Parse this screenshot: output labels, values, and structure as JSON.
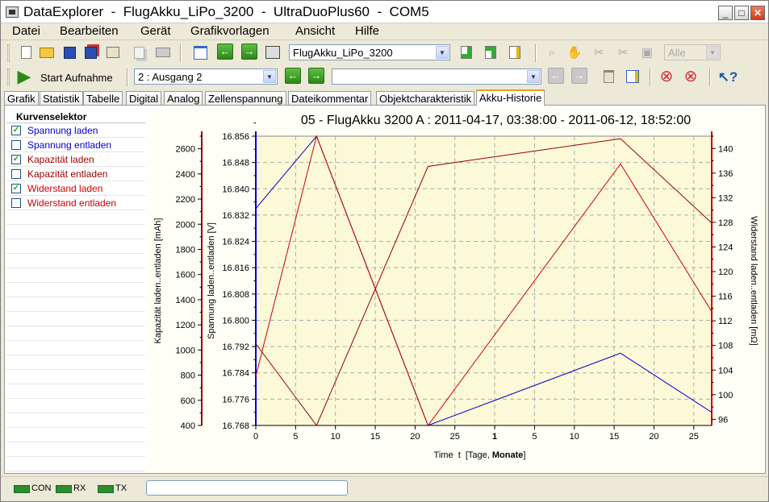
{
  "window": {
    "title": "DataExplorer  -  FlugAkku_LiPo_3200  -  UltraDuoPlus60  -  COM5",
    "minimize": "_",
    "maximize": "□",
    "close": "✕"
  },
  "menu": [
    "Datei",
    "Bearbeiten",
    "Gerät",
    "Grafikvorlagen",
    "Ansicht",
    "Hilfe"
  ],
  "toolbar": {
    "file_combo": "FlugAkku_LiPo_3200",
    "filter_combo": "Alle",
    "start_label": "Start Aufnahme",
    "channel_combo": "2 : Ausgang 2",
    "record_combo": "",
    "icons": {
      "new": "new-file-icon",
      "open": "open-folder-icon",
      "save": "save-icon",
      "save_as": "save-as-icon",
      "properties": "properties-icon",
      "copy": "copy-icon",
      "print": "print-icon"
    }
  },
  "tabs": [
    "Grafik",
    "Statistik",
    "Tabelle",
    "Digital",
    "Analog",
    "Zellenspannung",
    "Dateikommentar",
    "Objektcharakteristik",
    "Akku-Historie"
  ],
  "selected_tab": "Akku-Historie",
  "selector": {
    "header": "Kurvenselektor",
    "items": [
      {
        "label": "Spannung laden",
        "checked": true,
        "color": "#0000cc"
      },
      {
        "label": "Spannung entladen",
        "checked": false,
        "color": "#0000cc"
      },
      {
        "label": "Kapazität laden",
        "checked": true,
        "color": "#990000"
      },
      {
        "label": "Kapazität entladen",
        "checked": false,
        "color": "#990000"
      },
      {
        "label": "Widerstand laden",
        "checked": true,
        "color": "#cc0000"
      },
      {
        "label": "Widerstand entladen",
        "checked": false,
        "color": "#cc0000"
      }
    ]
  },
  "chart_data": {
    "type": "line",
    "title": "05 - FlugAkku 3200 A : 2011-04-17, 03:38:00 - 2011-06-12, 18:52:00",
    "xlabel_prefix": "Time  t  [Tage, ",
    "xlabel_bold": "Monate",
    "xlabel_suffix": "]",
    "x_ticks": [
      "0",
      "5",
      "10",
      "15",
      "20",
      "25",
      "1",
      "5",
      "10",
      "15",
      "20",
      "25"
    ],
    "x_tick_bold_index": 6,
    "axes": {
      "capacity": {
        "label": "Kapazität laden..entladen  [mAh]",
        "range": [
          400,
          2700
        ],
        "ticks": [
          "400",
          "600",
          "800",
          "1000",
          "1200",
          "1400",
          "1600",
          "1800",
          "2000",
          "2200",
          "2400",
          "2600"
        ],
        "color": "#990000"
      },
      "voltage": {
        "label": "Spannung laden..entladen  [V]",
        "range": [
          16.768,
          16.856
        ],
        "ticks": [
          "16.768",
          "16.776",
          "16.784",
          "16.792",
          "16.800",
          "16.808",
          "16.816",
          "16.824",
          "16.832",
          "16.840",
          "16.848",
          "16.856"
        ],
        "color": "#0000cc"
      },
      "resistance": {
        "label": "Widerstand laden..entladen  [mΩ]",
        "range": [
          95,
          142
        ],
        "ticks": [
          "96",
          "100",
          "104",
          "108",
          "112",
          "116",
          "120",
          "124",
          "128",
          "132",
          "136",
          "140"
        ],
        "color": "#cc0000"
      }
    },
    "series": [
      {
        "name": "Spannung laden",
        "axis": "voltage",
        "color": "#0000cc",
        "x": [
          0,
          3.6,
          10.2,
          21.6,
          27.0
        ],
        "y": [
          16.834,
          16.856,
          16.768,
          16.79,
          16.772
        ]
      },
      {
        "name": "Kapazität laden",
        "axis": "capacity",
        "color": "#990000",
        "x": [
          0,
          3.6,
          10.2,
          21.6,
          27.0
        ],
        "y": [
          1050,
          400,
          2460,
          2680,
          2010
        ]
      },
      {
        "name": "Widerstand laden",
        "axis": "resistance",
        "color": "#cc0000",
        "x": [
          0,
          3.6,
          10.2,
          21.6,
          27.0
        ],
        "y": [
          103,
          142,
          95,
          137.5,
          113.5
        ]
      }
    ],
    "xlim": [
      0,
      27.0
    ],
    "grid": true
  },
  "status": {
    "con": "CON",
    "rx": "RX",
    "tx": "TX",
    "field": ""
  }
}
